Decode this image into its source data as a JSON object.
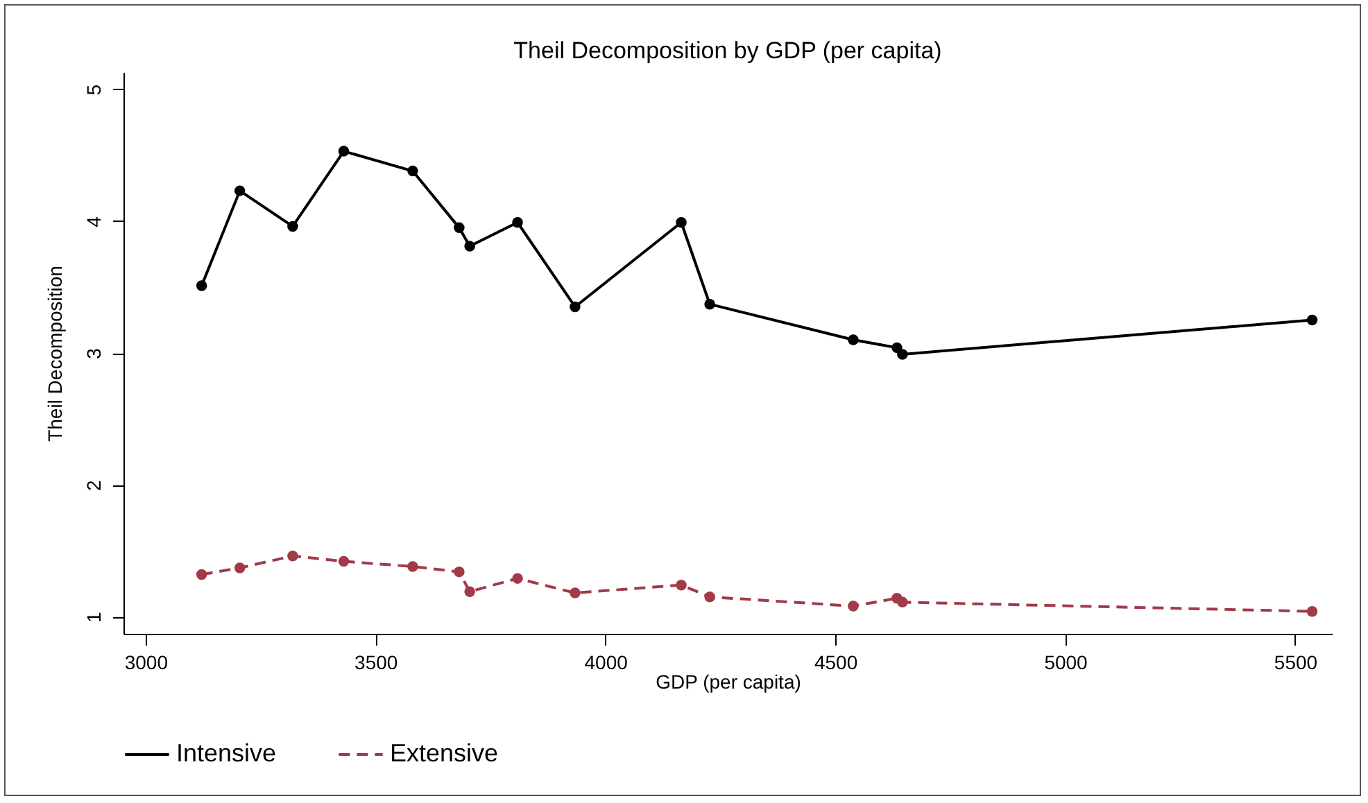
{
  "chart_data": {
    "type": "line",
    "title": "Theil Decomposition by GDP (per capita)",
    "xlabel": "GDP (per capita)",
    "ylabel": "Theil Decomposition",
    "x": [
      3122,
      3205,
      3320,
      3431,
      3581,
      3682,
      3705,
      3809,
      3934,
      4165,
      4227,
      4539,
      4634,
      4646,
      5537
    ],
    "series": [
      {
        "name": "Intensive",
        "color": "#000000",
        "line_style": "solid",
        "values": [
          3.51,
          4.23,
          3.96,
          4.53,
          4.38,
          3.95,
          3.81,
          3.99,
          3.35,
          3.99,
          3.37,
          3.1,
          3.04,
          2.99,
          3.25
        ]
      },
      {
        "name": "Extensive",
        "color": "#a23a48",
        "line_style": "dashed",
        "values": [
          1.32,
          1.37,
          1.46,
          1.42,
          1.38,
          1.34,
          1.19,
          1.29,
          1.18,
          1.24,
          1.15,
          1.08,
          1.14,
          1.11,
          1.04
        ]
      }
    ],
    "xlim": [
      2952,
      5580
    ],
    "xticks": [
      3000,
      3500,
      4000,
      4500,
      5000,
      5500
    ],
    "ylim": [
      0.87,
      5.13
    ],
    "yticks": [
      1,
      2,
      3,
      4,
      5
    ],
    "grid": false,
    "legend": "bottom",
    "marker": "circle"
  }
}
